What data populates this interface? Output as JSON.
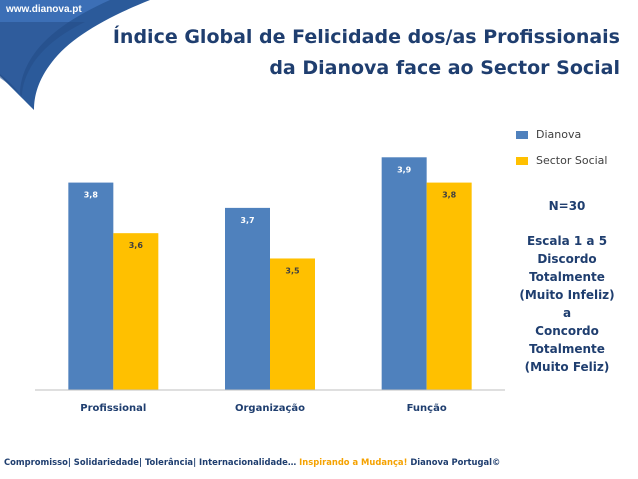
{
  "header": {
    "site_url": "www.dianova.pt",
    "title_line1": "Índice Global de Felicidade dos/as Profissionais",
    "title_line2": "da Dianova face ao Sector Social"
  },
  "chart_data": {
    "type": "bar",
    "title": "Índice Global de Felicidade dos/as Profissionais da Dianova face ao Sector Social",
    "categories": [
      "Profissional",
      "Organização",
      "Função"
    ],
    "series": [
      {
        "name": "Dianova",
        "values": [
          3.8,
          3.7,
          3.9
        ],
        "labels": [
          "3,8",
          "3,7",
          "3,9"
        ],
        "color": "#4f81bd"
      },
      {
        "name": "Sector Social",
        "values": [
          3.6,
          3.5,
          3.8
        ],
        "labels": [
          "3,6",
          "3,5",
          "3,8"
        ],
        "color": "#ffc000"
      }
    ],
    "xlabel": "",
    "ylabel": "",
    "ylim": [
      2.98,
      4.0
    ],
    "grid": false,
    "legend": "top-right"
  },
  "notes": {
    "sample": "N=30",
    "scale_lines": [
      "Escala 1 a 5",
      "Discordo",
      "Totalmente",
      "(Muito Infeliz)",
      "a",
      "Concordo",
      "Totalmente",
      "(Muito Feliz)"
    ]
  },
  "footer": {
    "values_text": "Compromisso| Solidariedade| Tolerância| Internacionalidade…",
    "slogan": "Inspirando a Mudança!",
    "copyright": "Dianova Portugal©"
  },
  "colors": {
    "navy": "#1f3e6f",
    "dianova_blue": "#4f81bd",
    "sector_yellow": "#ffc000",
    "slogan_orange": "#f5a200"
  }
}
